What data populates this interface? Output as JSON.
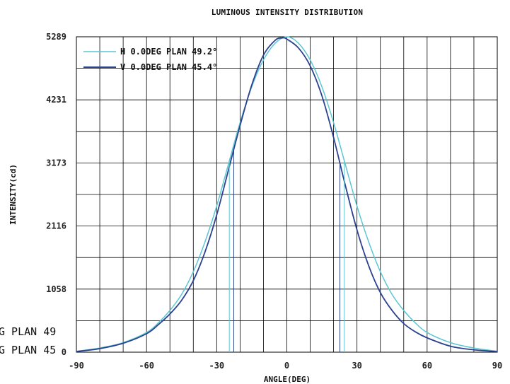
{
  "chart_data": {
    "type": "line",
    "title": "LUMINOUS INTENSITY DISTRIBUTION",
    "xlabel": "ANGLE(DEG)",
    "ylabel": "INTENSITY(cd)",
    "xlim": [
      -90,
      90
    ],
    "ylim": [
      0,
      5289
    ],
    "x_ticks": [
      "-90",
      "-60",
      "-30",
      "0",
      "30",
      "60",
      "90"
    ],
    "y_ticks": [
      "0",
      "1058",
      "2116",
      "3173",
      "4231",
      "5289"
    ],
    "grid": true,
    "legend_position": "top-left",
    "series": [
      {
        "name": "H 0.0DEG PLAN 49.2°",
        "color": "#5cc6d2",
        "half_angle_markers": [
          -24.6,
          24.6
        ],
        "x": [
          -90,
          -80,
          -70,
          -60,
          -55,
          -50,
          -45,
          -40,
          -35,
          -30,
          -25,
          -20,
          -15,
          -10,
          -5,
          0,
          5,
          10,
          15,
          20,
          25,
          30,
          35,
          40,
          45,
          50,
          55,
          60,
          70,
          80,
          90
        ],
        "y": [
          15,
          70,
          160,
          330,
          490,
          700,
          970,
          1350,
          1850,
          2450,
          3150,
          3850,
          4450,
          4900,
          5180,
          5289,
          5180,
          4900,
          4450,
          3850,
          3150,
          2450,
          1850,
          1350,
          970,
          700,
          490,
          330,
          160,
          70,
          15
        ]
      },
      {
        "name": "V 0.0DEG PLAN 45.4°",
        "color": "#2b4290",
        "half_angle_markers": [
          -22.7,
          22.7
        ],
        "x": [
          -90,
          -80,
          -70,
          -60,
          -55,
          -50,
          -45,
          -40,
          -35,
          -30,
          -25,
          -20,
          -15,
          -10,
          -5,
          -2,
          0,
          5,
          10,
          15,
          20,
          25,
          30,
          35,
          40,
          45,
          50,
          55,
          60,
          70,
          80,
          90
        ],
        "y": [
          10,
          60,
          150,
          310,
          460,
          640,
          870,
          1200,
          1680,
          2300,
          3050,
          3800,
          4480,
          4980,
          5230,
          5270,
          5250,
          5100,
          4800,
          4300,
          3600,
          2800,
          2050,
          1450,
          1000,
          700,
          480,
          340,
          240,
          100,
          40,
          10
        ]
      }
    ],
    "cut_labels": [
      "G PLAN 49",
      "G PLAN 45"
    ]
  }
}
